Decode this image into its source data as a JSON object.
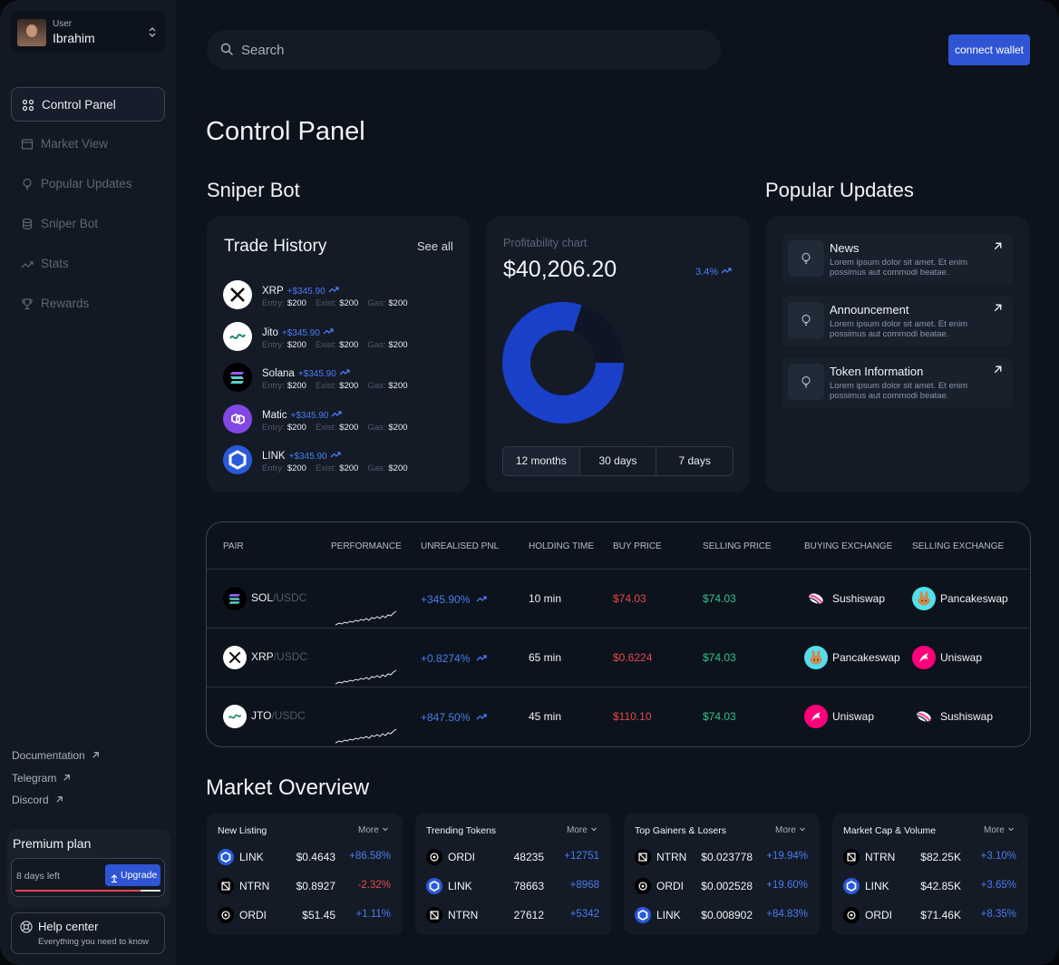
{
  "user": {
    "label": "User",
    "name": "Ibrahim"
  },
  "nav": [
    "Control Panel",
    "Market View",
    "Popular Updates",
    "Sniper Bot",
    "Stats",
    "Rewards"
  ],
  "links": [
    "Documentation",
    "Telegram",
    "Discord"
  ],
  "premium": {
    "title": "Premium plan",
    "days_left": "8 days left",
    "button": "Upgrade"
  },
  "help": {
    "title": "Help center",
    "subtitle": "Everything you need to know"
  },
  "search": "Search",
  "connect": "connect wallet",
  "page_title": "Control Panel",
  "sniper_title": "Sniper Bot",
  "updates_title": "Popular Updates",
  "trade_history": {
    "title": "Trade History",
    "see_all": "See all",
    "labels": [
      "Entry:",
      "Exist:",
      "Gas:"
    ],
    "items": [
      {
        "name": "XRP",
        "gain": "+$345.90",
        "entry": "$200",
        "exist": "$200",
        "gas": "$200"
      },
      {
        "name": "Jito",
        "gain": "+$345.90",
        "entry": "$200",
        "exist": "$200",
        "gas": "$200"
      },
      {
        "name": "Solana",
        "gain": "+$345.90",
        "entry": "$200",
        "exist": "$200",
        "gas": "$200"
      },
      {
        "name": "Matic",
        "gain": "+$345.90",
        "entry": "$200",
        "exist": "$200",
        "gas": "$200"
      },
      {
        "name": "LINK",
        "gain": "+$345.90",
        "entry": "$200",
        "exist": "$200",
        "gas": "$200"
      }
    ]
  },
  "profitability": {
    "label": "Profitability chart",
    "value": "$40,206.20",
    "change": "3.4%",
    "donut": [
      80,
      20
    ],
    "periods": [
      "12 months",
      "30 days",
      "7 days"
    ]
  },
  "updates": [
    {
      "title": "News",
      "text": "Lorem ipsum dolor sit amet. Et enim possimus aut commodi beatae."
    },
    {
      "title": "Announcement",
      "text": "Lorem ipsum dolor sit amet. Et enim possimus aut commodi beatae."
    },
    {
      "title": "Token Information",
      "text": "Lorem ipsum dolor sit amet. Et enim possimus aut commodi beatae."
    }
  ],
  "table": {
    "columns": [
      "PAIR",
      "PERFORMANCE",
      "UNREALISED PNL",
      "HOLDING TIME",
      "BUY PRICE",
      "SELLING PRICE",
      "BUYING EXCHANGE",
      "SELLING EXCHANGE"
    ],
    "rows": [
      {
        "base": "SOL",
        "quote": "/USDC",
        "pnl": "+345.90%",
        "time": "10 min",
        "buy": "$74.03",
        "sell": "$74.03",
        "buy_exchange": "Sushiswap",
        "sell_exchange": "Pancakeswap"
      },
      {
        "base": "XRP",
        "quote": "/USDC",
        "pnl": "+0.8274%",
        "time": "65 min",
        "buy": "$0.6224",
        "sell": "$74.03",
        "buy_exchange": "Pancakeswap",
        "sell_exchange": "Uniswap"
      },
      {
        "base": "JTO",
        "quote": "/USDC",
        "pnl": "+847.50%",
        "time": "45 min",
        "buy": "$110.10",
        "sell": "$74.03",
        "buy_exchange": "Uniswap",
        "sell_exchange": "Sushiswap"
      }
    ]
  },
  "market_overview": {
    "title": "Market Overview",
    "more": "More",
    "cards": [
      {
        "title": "New Listing",
        "rows": [
          [
            "LINK",
            "$0.4643",
            "+86.58%"
          ],
          [
            "NTRN",
            "$0.8927",
            "-2.32%"
          ],
          [
            "ORDI",
            "$51.45",
            "+1.11%"
          ]
        ]
      },
      {
        "title": "Trending Tokens",
        "rows": [
          [
            "ORDI",
            "48235",
            "+12751"
          ],
          [
            "LINK",
            "78663",
            "+8968"
          ],
          [
            "NTRN",
            "27612",
            "+5342"
          ]
        ]
      },
      {
        "title": "Top Gainers & Losers",
        "rows": [
          [
            "NTRN",
            "$0.023778",
            "+19.94%"
          ],
          [
            "ORDI",
            "$0.002528",
            "+19.60%"
          ],
          [
            "LINK",
            "$0.008902",
            "+84.83%"
          ]
        ]
      },
      {
        "title": "Market Cap & Volume",
        "rows": [
          [
            "NTRN",
            "$82.25K",
            "+3.10%"
          ],
          [
            "LINK",
            "$42.85K",
            "+3.65%"
          ],
          [
            "ORDI",
            "$71.46K",
            "+8.35%"
          ]
        ]
      }
    ]
  }
}
